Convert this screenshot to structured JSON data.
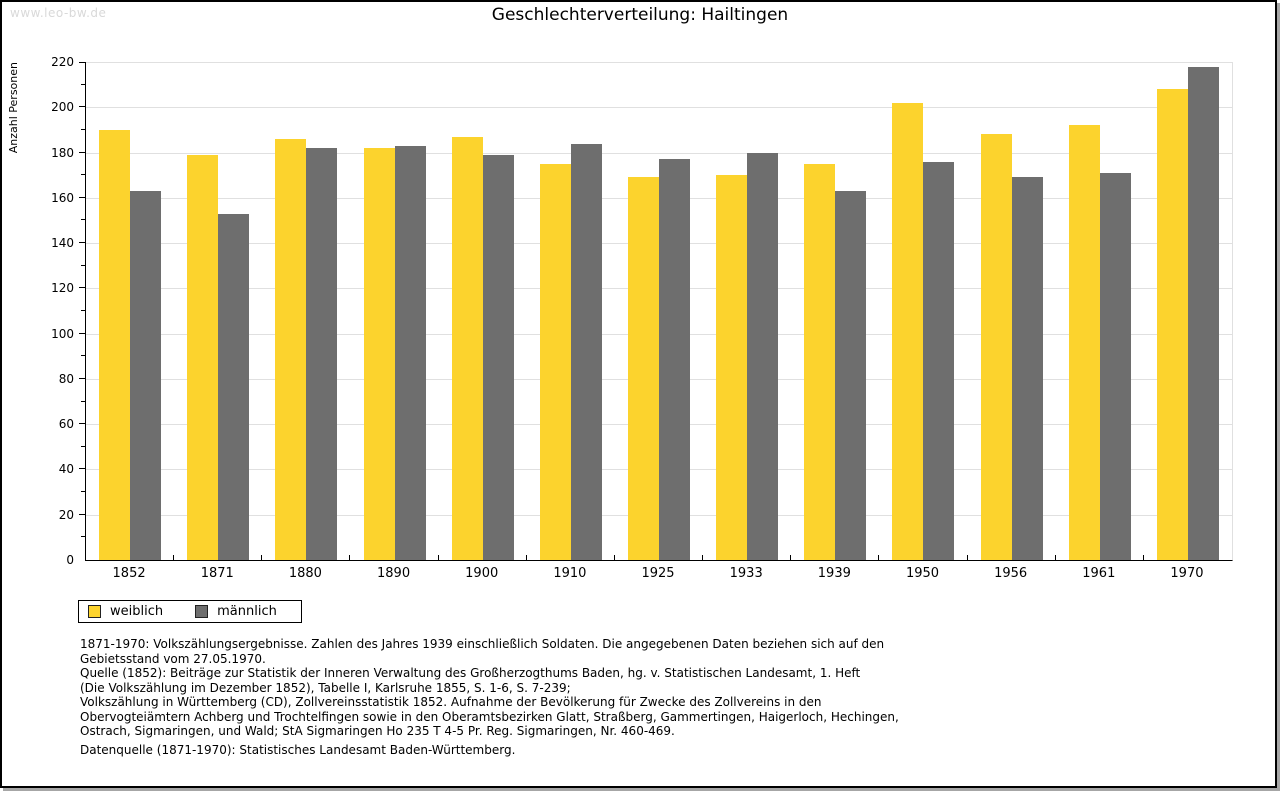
{
  "watermark": "www.leo-bw.de",
  "title": "Geschlechterverteilung: Hailtingen",
  "chart_data": {
    "type": "bar",
    "title": "Geschlechterverteilung: Hailtingen",
    "xlabel": "",
    "ylabel": "Anzahl Personen",
    "ylim": [
      0,
      220
    ],
    "ytick_step": 20,
    "ytick_minor_step": 10,
    "grid": "horizontal",
    "legend_position": "bottom-left",
    "categories": [
      "1852",
      "1871",
      "1880",
      "1890",
      "1900",
      "1910",
      "1925",
      "1933",
      "1939",
      "1950",
      "1956",
      "1961",
      "1970"
    ],
    "series": [
      {
        "name": "weiblich",
        "color": "#fcd32d",
        "values": [
          190,
          179,
          186,
          182,
          187,
          175,
          169,
          170,
          175,
          202,
          188,
          192,
          208
        ]
      },
      {
        "name": "männlich",
        "color": "#6e6e6e",
        "values": [
          163,
          153,
          182,
          183,
          179,
          184,
          177,
          180,
          163,
          176,
          169,
          171,
          218
        ]
      }
    ]
  },
  "legend": {
    "items": [
      {
        "label": "weiblich",
        "color": "#fcd32d"
      },
      {
        "label": "männlich",
        "color": "#6e6e6e"
      }
    ]
  },
  "footnotes": {
    "lines": [
      "1871-1970: Volkszählungsergebnisse. Zahlen des Jahres 1939 einschließlich Soldaten. Die angegebenen Daten beziehen sich auf den",
      "Gebietsstand vom 27.05.1970.",
      "Quelle (1852): Beiträge zur Statistik der Inneren Verwaltung des Großherzogthums Baden, hg. v. Statistischen Landesamt, 1. Heft",
      "(Die Volkszählung im Dezember 1852), Tabelle I, Karlsruhe 1855, S. 1-6, S. 7-239;",
      "Volkszählung in Württemberg (CD), Zollvereinsstatistik 1852. Aufnahme der Bevölkerung für Zwecke des Zollvereins in den",
      "Obervogteiämtern Achberg und Trochtelfingen sowie in den Oberamtsbezirken Glatt, Straßberg, Gammertingen, Haigerloch, Hechingen,",
      "Ostrach, Sigmaringen, und Wald; StA Sigmaringen Ho 235 T 4-5 Pr. Reg. Sigmaringen, Nr. 460-469."
    ],
    "source": "Datenquelle (1871-1970): Statistisches Landesamt Baden-Württemberg."
  },
  "colors": {
    "grid": "#e0e0e0",
    "axis": "#000000",
    "watermark": "#d9d9d9"
  }
}
